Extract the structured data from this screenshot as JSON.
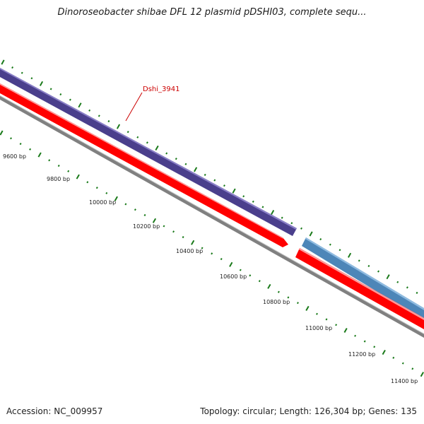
{
  "title": "Dinoroseobacter shibae DFL 12 plasmid pDSHI03, complete sequ...",
  "accession": "Accession: NC_009957",
  "summary": "Topology: circular; Length: 126,304 bp; Genes: 135",
  "gene_label": "Dshi_3941",
  "position_labels": [
    "9600 bp",
    "9800 bp",
    "10000 bp",
    "10200 bp",
    "10400 bp",
    "10600 bp",
    "10800 bp",
    "11000 bp",
    "11200 bp",
    "11400 bp"
  ],
  "colors": {
    "gene_purple": "#4a3f8c",
    "gene_blue": "#4d86b8",
    "cds_red": "#ff0000",
    "backbone_gray": "#808080",
    "tick_green": "#1a7a1a",
    "label_red": "#cc0000"
  }
}
